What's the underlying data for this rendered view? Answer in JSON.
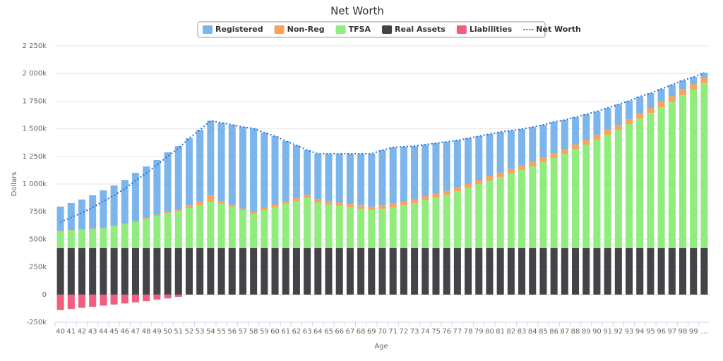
{
  "chart_data": {
    "type": "bar",
    "stacked": true,
    "title": "Net Worth",
    "x_label": "Age",
    "y_label": "Dollars",
    "categories": [
      "40",
      "41",
      "42",
      "43",
      "44",
      "45",
      "46",
      "47",
      "48",
      "49",
      "50",
      "51",
      "52",
      "53",
      "54",
      "55",
      "56",
      "57",
      "58",
      "59",
      "60",
      "61",
      "62",
      "63",
      "64",
      "65",
      "66",
      "67",
      "68",
      "69",
      "70",
      "71",
      "72",
      "73",
      "74",
      "75",
      "76",
      "77",
      "78",
      "79",
      "80",
      "81",
      "82",
      "83",
      "84",
      "85",
      "86",
      "87",
      "88",
      "89",
      "90",
      "91",
      "92",
      "93",
      "94",
      "95",
      "96",
      "97",
      "98",
      "99",
      "…"
    ],
    "ylim": [
      -250000,
      2250000
    ],
    "yticks": [
      {
        "value": -250000,
        "label": "-250k"
      },
      0,
      {
        "value": 250000,
        "label": "250k"
      },
      {
        "value": 500000,
        "label": "500k"
      },
      {
        "value": 750000,
        "label": "750k"
      },
      {
        "value": 1000000,
        "label": "1 000k"
      },
      {
        "value": 1250000,
        "label": "1 250k"
      },
      {
        "value": 1500000,
        "label": "1 500k"
      },
      {
        "value": 1750000,
        "label": "1 750k"
      },
      {
        "value": 2000000,
        "label": "2 000k"
      },
      {
        "value": 2250000,
        "label": "2 250k"
      }
    ],
    "grid": true,
    "legend": "top",
    "series": [
      {
        "name": "Registered",
        "color": "#7cb5ec",
        "values": [
          218000,
          243000,
          269000,
          301000,
          339000,
          364000,
          396000,
          435000,
          467000,
          494000,
          538000,
          576000,
          606000,
          646000,
          677000,
          712000,
          724000,
          737000,
          756000,
          681000,
          618000,
          542000,
          478000,
          403000,
          410000,
          429000,
          441000,
          454000,
          467000,
          480000,
          499000,
          506000,
          494000,
          481000,
          468000,
          455000,
          443000,
          424000,
          411000,
          398000,
          380000,
          367000,
          348000,
          330000,
          317000,
          298000,
          285000,
          266000,
          247000,
          234000,
          210000,
          197000,
          185000,
          166000,
          153000,
          134000,
          116000,
          103000,
          83000,
          64000,
          45000
        ]
      },
      {
        "name": "Non-Reg",
        "color": "#f7a35c",
        "values": [
          5000,
          5000,
          5000,
          5000,
          5000,
          5000,
          5000,
          10000,
          10000,
          10000,
          10000,
          10000,
          25000,
          35000,
          55000,
          20000,
          15000,
          15000,
          15000,
          20000,
          25000,
          25000,
          25000,
          30000,
          30000,
          30000,
          30000,
          30000,
          30000,
          30000,
          30000,
          35000,
          35000,
          35000,
          35000,
          35000,
          35000,
          35000,
          35000,
          35000,
          40000,
          40000,
          40000,
          40000,
          40000,
          40000,
          40000,
          40000,
          40000,
          40000,
          45000,
          45000,
          45000,
          45000,
          45000,
          45000,
          50000,
          50000,
          50000,
          50000,
          50000
        ]
      },
      {
        "name": "TFSA",
        "color": "#90ed7d",
        "values": [
          153000,
          160000,
          166000,
          172000,
          179000,
          198000,
          217000,
          236000,
          262000,
          293000,
          319000,
          338000,
          363000,
          389000,
          421000,
          402000,
          376000,
          344000,
          312000,
          344000,
          370000,
          402000,
          427000,
          453000,
          414000,
          395000,
          383000,
          370000,
          357000,
          344000,
          357000,
          370000,
          389000,
          408000,
          434000,
          459000,
          484000,
          516000,
          548000,
          580000,
          612000,
          644000,
          676000,
          707000,
          739000,
          777000,
          816000,
          854000,
          898000,
          937000,
          981000,
          1026000,
          1070000,
          1121000,
          1172000,
          1223000,
          1274000,
          1325000,
          1383000,
          1434000,
          1491000
        ]
      },
      {
        "name": "Real Assets",
        "color": "#434348",
        "values": [
          420000,
          420000,
          420000,
          420000,
          420000,
          420000,
          420000,
          420000,
          420000,
          420000,
          420000,
          420000,
          420000,
          420000,
          420000,
          420000,
          420000,
          420000,
          420000,
          420000,
          420000,
          420000,
          420000,
          420000,
          420000,
          420000,
          420000,
          420000,
          420000,
          420000,
          420000,
          420000,
          420000,
          420000,
          420000,
          420000,
          420000,
          420000,
          420000,
          420000,
          420000,
          420000,
          420000,
          420000,
          420000,
          420000,
          420000,
          420000,
          420000,
          420000,
          420000,
          420000,
          420000,
          420000,
          420000,
          420000,
          420000,
          420000,
          420000,
          420000,
          420000
        ]
      },
      {
        "name": "Liabilities",
        "color": "#f15c80",
        "values": [
          -140000,
          -130000,
          -120000,
          -110000,
          -100000,
          -90000,
          -80000,
          -70000,
          -60000,
          -45000,
          -35000,
          -20000,
          0,
          0,
          0,
          0,
          0,
          0,
          0,
          0,
          0,
          0,
          0,
          0,
          0,
          0,
          0,
          0,
          0,
          0,
          0,
          0,
          0,
          0,
          0,
          0,
          0,
          0,
          0,
          0,
          0,
          0,
          0,
          0,
          0,
          0,
          0,
          0,
          0,
          0,
          0,
          0,
          0,
          0,
          0,
          0,
          0,
          0,
          0,
          0,
          0
        ]
      },
      {
        "name": "Net Worth",
        "type": "line",
        "dash": "dotted",
        "color": "#2b6fd6",
        "values": [
          656000,
          698000,
          740000,
          788000,
          843000,
          897000,
          958000,
          1031000,
          1099000,
          1172000,
          1252000,
          1324000,
          1414000,
          1490000,
          1573000,
          1554000,
          1535000,
          1516000,
          1503000,
          1465000,
          1433000,
          1389000,
          1350000,
          1306000,
          1274000,
          1274000,
          1274000,
          1274000,
          1274000,
          1274000,
          1306000,
          1331000,
          1338000,
          1344000,
          1357000,
          1369000,
          1382000,
          1395000,
          1414000,
          1433000,
          1452000,
          1471000,
          1484000,
          1497000,
          1516000,
          1535000,
          1561000,
          1580000,
          1605000,
          1631000,
          1656000,
          1688000,
          1720000,
          1752000,
          1790000,
          1822000,
          1860000,
          1898000,
          1936000,
          1968000,
          2006000
        ]
      }
    ]
  }
}
